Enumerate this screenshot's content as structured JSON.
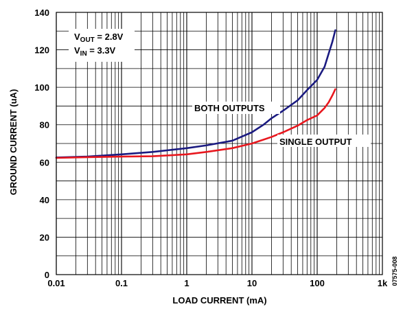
{
  "chart_data": {
    "type": "line",
    "title": "",
    "xlabel": "LOAD CURRENT (mA)",
    "ylabel": "GROUND CURRENT (uA)",
    "x_scale": "log",
    "xlim": [
      0.01,
      1000
    ],
    "ylim": [
      0,
      140
    ],
    "x_ticks": [
      0.01,
      0.1,
      1,
      10,
      100,
      1000
    ],
    "x_tick_labels": [
      "0.01",
      "0.1",
      "1",
      "10",
      "100",
      "1k"
    ],
    "y_ticks": [
      0,
      20,
      40,
      60,
      80,
      100,
      120,
      140
    ],
    "y_tick_labels": [
      "0",
      "20",
      "40",
      "60",
      "80",
      "100",
      "120",
      "140"
    ],
    "grid": true,
    "legend": "none",
    "annotations": {
      "vout_prefix": "V",
      "vout_sub": "OUT",
      "vout_value": " = 2.8V",
      "vin_prefix": "V",
      "vin_sub": "IN",
      "vin_value": " = 3.3V",
      "figure_code": "07575-008"
    },
    "series": [
      {
        "name": "BOTH OUTPUTS",
        "color": "#1a1a80",
        "points": [
          [
            0.01,
            62.5
          ],
          [
            0.03,
            63
          ],
          [
            0.1,
            64.2
          ],
          [
            0.3,
            65.5
          ],
          [
            1,
            67.5
          ],
          [
            2,
            69
          ],
          [
            5,
            71.5
          ],
          [
            10,
            76
          ],
          [
            15,
            80
          ],
          [
            20,
            83.5
          ],
          [
            30,
            87.5
          ],
          [
            50,
            93
          ],
          [
            70,
            98.5
          ],
          [
            100,
            104
          ],
          [
            130,
            111
          ],
          [
            150,
            118
          ],
          [
            170,
            124
          ],
          [
            190,
            130.5
          ]
        ]
      },
      {
        "name": "SINGLE OUTPUT",
        "color": "#e8171e",
        "points": [
          [
            0.01,
            62.3
          ],
          [
            0.03,
            62.7
          ],
          [
            0.1,
            63
          ],
          [
            0.3,
            63.2
          ],
          [
            1,
            64.2
          ],
          [
            2,
            65.5
          ],
          [
            5,
            67.5
          ],
          [
            10,
            70
          ],
          [
            20,
            73.5
          ],
          [
            30,
            76
          ],
          [
            50,
            79.5
          ],
          [
            70,
            82.5
          ],
          [
            100,
            85
          ],
          [
            130,
            89
          ],
          [
            150,
            92
          ],
          [
            170,
            95.5
          ],
          [
            190,
            99
          ]
        ]
      }
    ]
  }
}
